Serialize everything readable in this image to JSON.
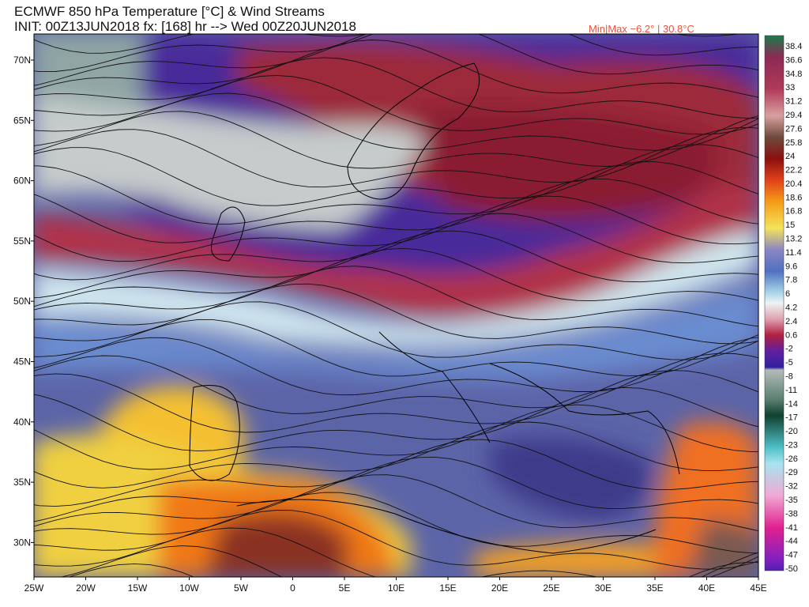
{
  "header": {
    "title": "ECMWF 850 hPa Temperature [°C] & Wind Streams",
    "init": "INIT: 00Z13JUN2018 fx: [168] hr --> Wed 00Z20JUN2018",
    "minmax": "Min|Max −6.2° | 30.8°C"
  },
  "map": {
    "lat_labels": [
      "70N",
      "65N",
      "60N",
      "55N",
      "50N",
      "45N",
      "40N",
      "35N",
      "30N"
    ],
    "lon_labels": [
      "25W",
      "20W",
      "15W",
      "10W",
      "5W",
      "0",
      "5E",
      "10E",
      "15E",
      "20E",
      "25E",
      "30E",
      "35E",
      "40E",
      "45E"
    ]
  },
  "colorbar": {
    "labels": [
      "38.4",
      "36.6",
      "34.8",
      "33",
      "31.2",
      "29.4",
      "27.6",
      "25.8",
      "24",
      "22.2",
      "20.4",
      "18.6",
      "16.8",
      "15",
      "13.2",
      "11.4",
      "9.6",
      "7.8",
      "6",
      "4.2",
      "2.4",
      "0.6",
      "-2",
      "-5",
      "-8",
      "-11",
      "-14",
      "-17",
      "-20",
      "-23",
      "-26",
      "-29",
      "-32",
      "-35",
      "-38",
      "-41",
      "-44",
      "-47",
      "-50"
    ]
  }
}
